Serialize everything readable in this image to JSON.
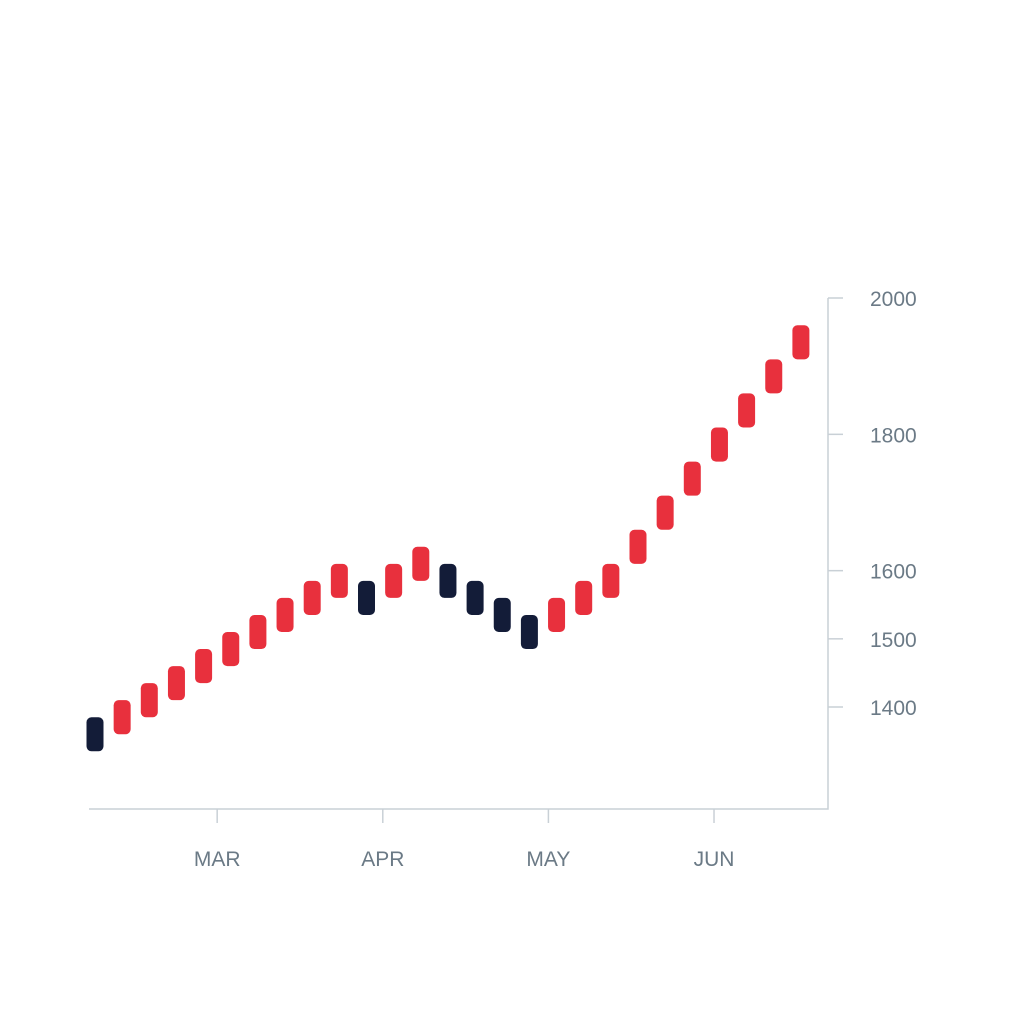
{
  "chart_data": {
    "type": "renko",
    "title": "",
    "xlabel": "",
    "ylabel": "",
    "x_axis": {
      "ticks": [
        "MAR",
        "APR",
        "MAY",
        "JUN"
      ],
      "tick_bricks": [
        4.5,
        10.6,
        16.7,
        22.8
      ]
    },
    "y_axis": {
      "position": "right",
      "ticks": [
        1400,
        1500,
        1600,
        1800,
        2000
      ],
      "ylim": [
        1300,
        2000
      ]
    },
    "colors": {
      "up": "#e8303d",
      "down": "#131c38"
    },
    "brick_size": 50,
    "bricks": [
      {
        "index": 0,
        "low": 1335,
        "high": 1385,
        "direction": "down"
      },
      {
        "index": 1,
        "low": 1360,
        "high": 1410,
        "direction": "up"
      },
      {
        "index": 2,
        "low": 1385,
        "high": 1435,
        "direction": "up"
      },
      {
        "index": 3,
        "low": 1410,
        "high": 1460,
        "direction": "up"
      },
      {
        "index": 4,
        "low": 1435,
        "high": 1485,
        "direction": "up"
      },
      {
        "index": 5,
        "low": 1460,
        "high": 1510,
        "direction": "up"
      },
      {
        "index": 6,
        "low": 1485,
        "high": 1535,
        "direction": "up"
      },
      {
        "index": 7,
        "low": 1510,
        "high": 1560,
        "direction": "up"
      },
      {
        "index": 8,
        "low": 1535,
        "high": 1585,
        "direction": "up"
      },
      {
        "index": 9,
        "low": 1560,
        "high": 1610,
        "direction": "up"
      },
      {
        "index": 10,
        "low": 1535,
        "high": 1585,
        "direction": "down"
      },
      {
        "index": 11,
        "low": 1560,
        "high": 1610,
        "direction": "up"
      },
      {
        "index": 12,
        "low": 1585,
        "high": 1635,
        "direction": "up"
      },
      {
        "index": 13,
        "low": 1560,
        "high": 1610,
        "direction": "down"
      },
      {
        "index": 14,
        "low": 1535,
        "high": 1585,
        "direction": "down"
      },
      {
        "index": 15,
        "low": 1510,
        "high": 1560,
        "direction": "down"
      },
      {
        "index": 16,
        "low": 1485,
        "high": 1535,
        "direction": "down"
      },
      {
        "index": 17,
        "low": 1510,
        "high": 1560,
        "direction": "up"
      },
      {
        "index": 18,
        "low": 1535,
        "high": 1585,
        "direction": "up"
      },
      {
        "index": 19,
        "low": 1560,
        "high": 1610,
        "direction": "up"
      },
      {
        "index": 20,
        "low": 1610,
        "high": 1660,
        "direction": "up"
      },
      {
        "index": 21,
        "low": 1660,
        "high": 1710,
        "direction": "up"
      },
      {
        "index": 22,
        "low": 1710,
        "high": 1760,
        "direction": "up"
      },
      {
        "index": 23,
        "low": 1760,
        "high": 1810,
        "direction": "up"
      },
      {
        "index": 24,
        "low": 1810,
        "high": 1860,
        "direction": "up"
      },
      {
        "index": 25,
        "low": 1860,
        "high": 1910,
        "direction": "up"
      },
      {
        "index": 26,
        "low": 1910,
        "high": 1960,
        "direction": "up"
      }
    ]
  }
}
